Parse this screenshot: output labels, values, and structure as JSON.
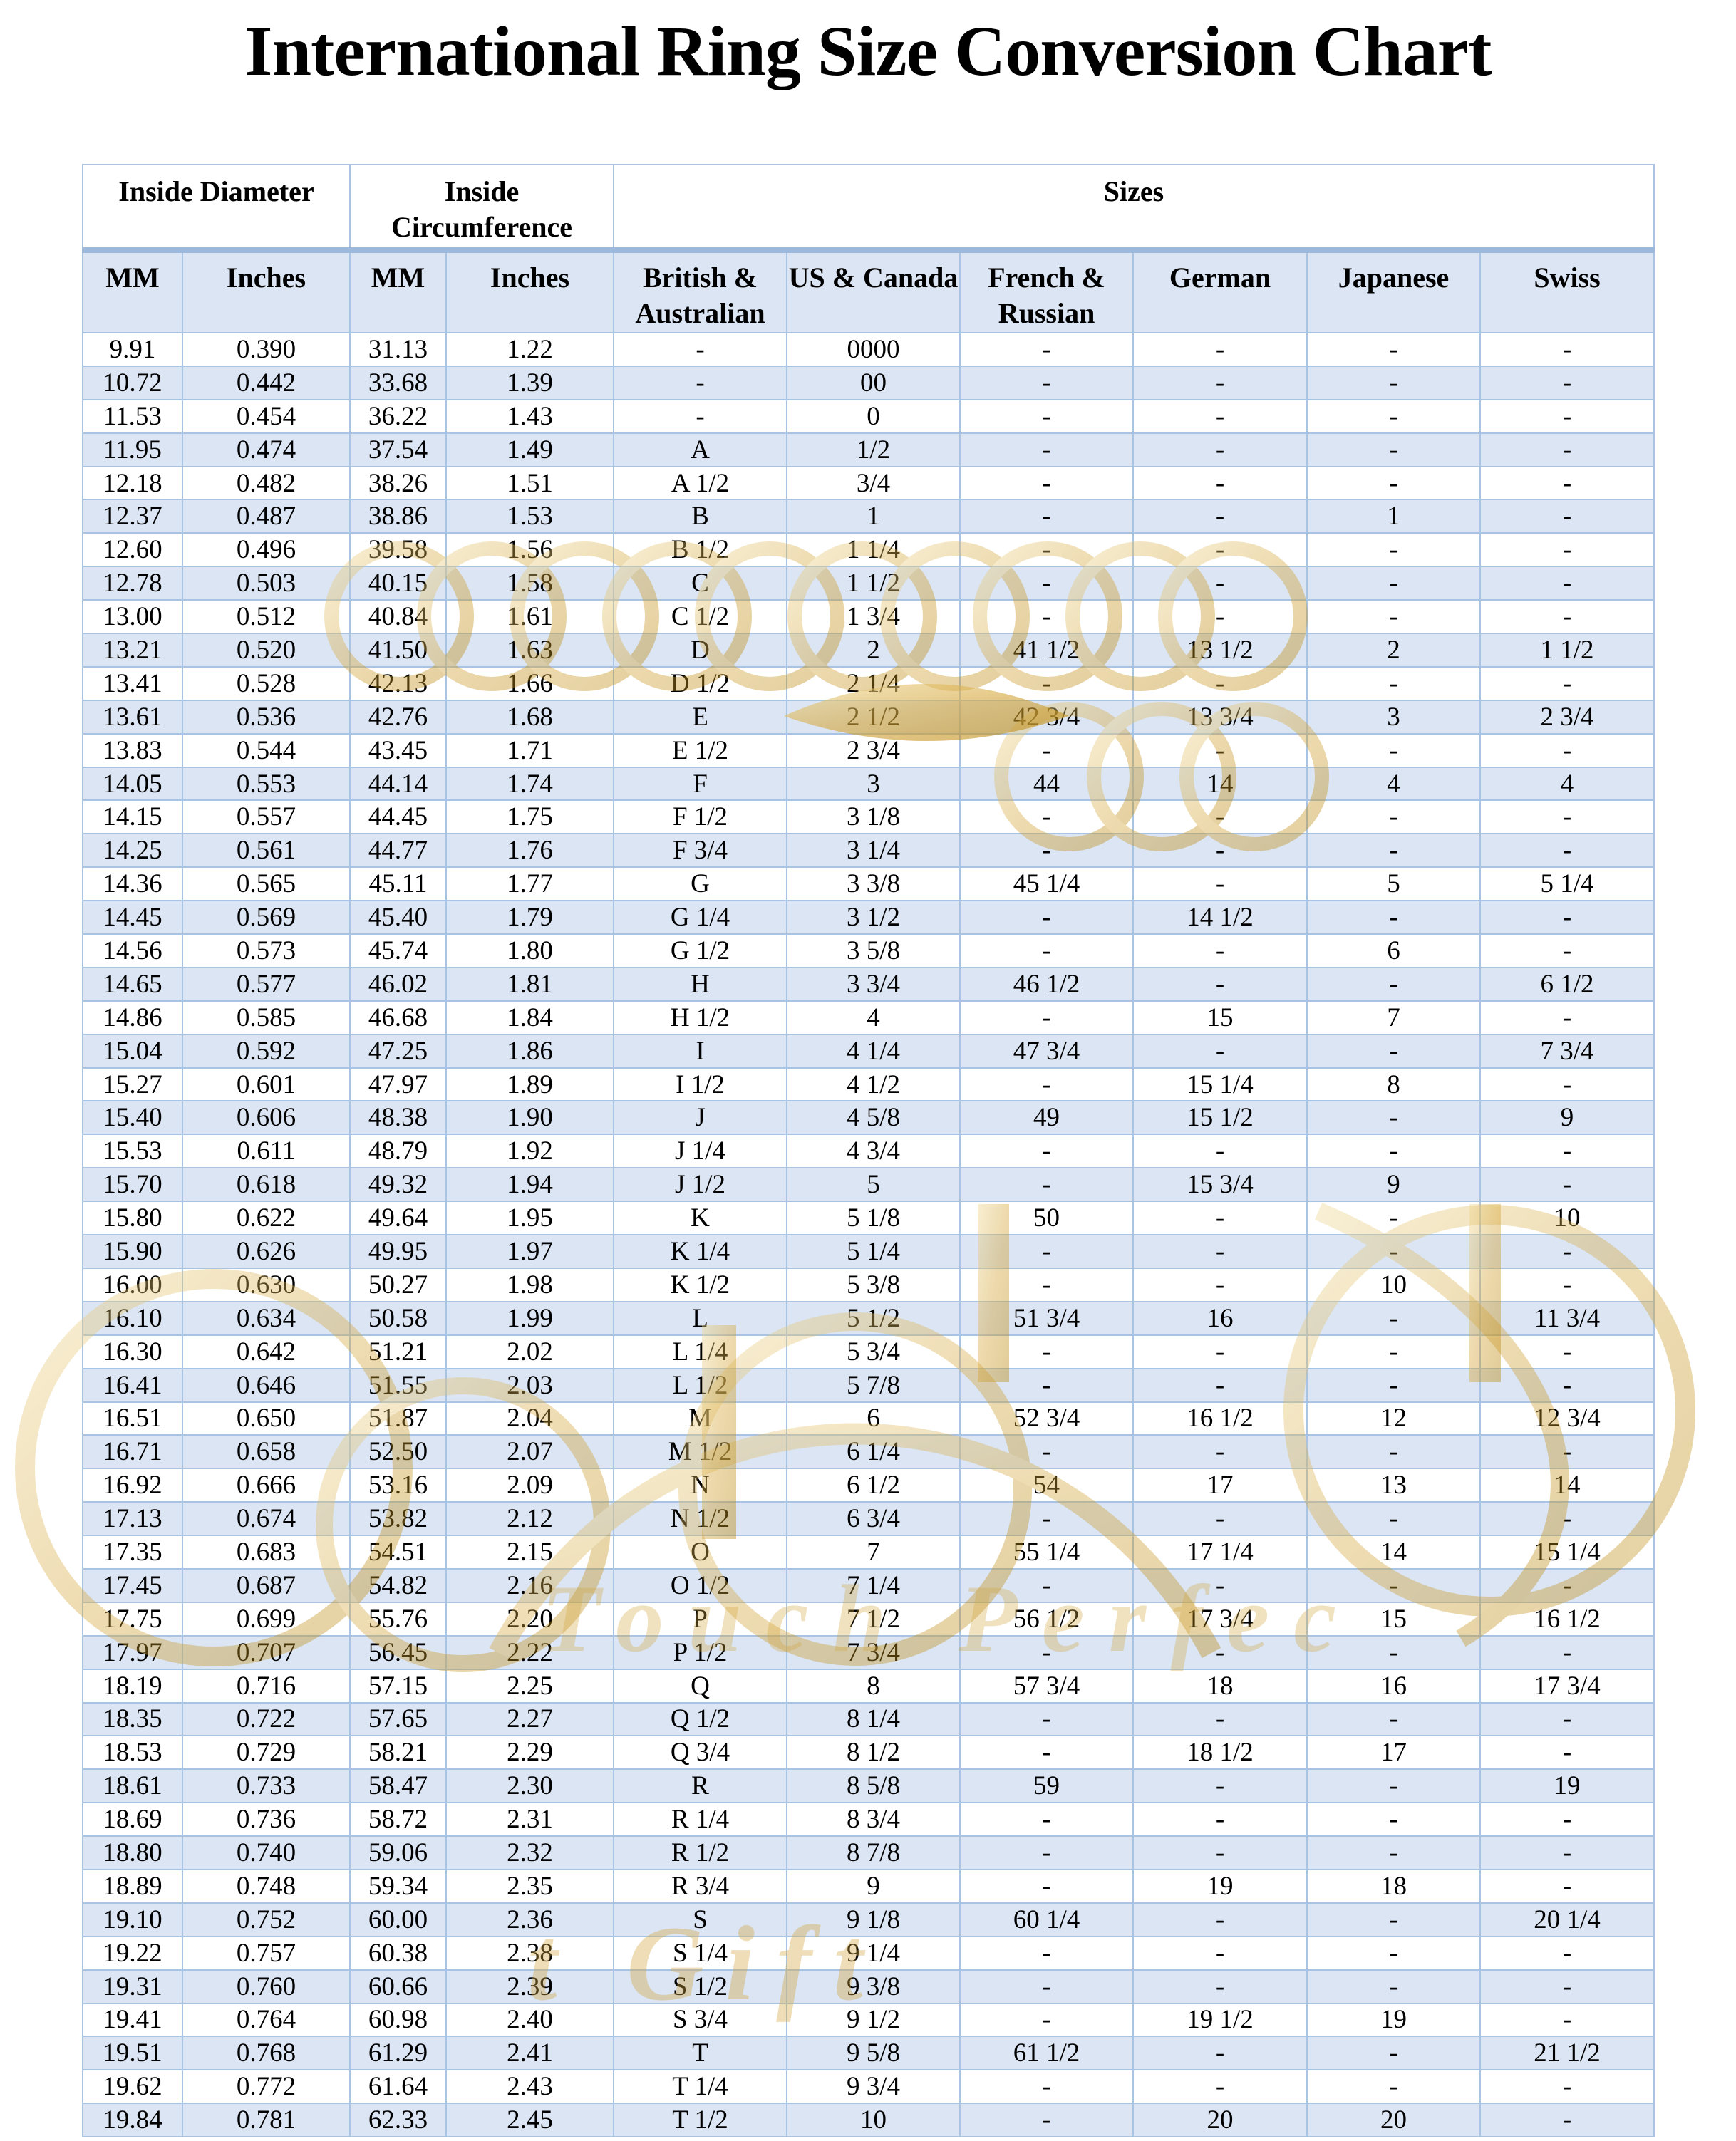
{
  "title": "International Ring Size Conversion Chart",
  "table": {
    "group_headers": [
      {
        "label": "Inside Diameter",
        "span": 2
      },
      {
        "label": "Inside Circumference",
        "span": 2
      },
      {
        "label": "Sizes",
        "span": 6
      }
    ],
    "column_headers": [
      "MM",
      "Inches",
      "MM",
      "Inches",
      "British & Australian",
      "US & Canada",
      "French & Russian",
      "German",
      "Japanese",
      "Swiss"
    ],
    "rows": [
      [
        "9.91",
        "0.390",
        "31.13",
        "1.22",
        "-",
        "0000",
        "-",
        "-",
        "-",
        "-"
      ],
      [
        "10.72",
        "0.442",
        "33.68",
        "1.39",
        "-",
        "00",
        "-",
        "-",
        "-",
        "-"
      ],
      [
        "11.53",
        "0.454",
        "36.22",
        "1.43",
        "-",
        "0",
        "-",
        "-",
        "-",
        "-"
      ],
      [
        "11.95",
        "0.474",
        "37.54",
        "1.49",
        "A",
        "1/2",
        "-",
        "-",
        "-",
        "-"
      ],
      [
        "12.18",
        "0.482",
        "38.26",
        "1.51",
        "A 1/2",
        "3/4",
        "-",
        "-",
        "-",
        "-"
      ],
      [
        "12.37",
        "0.487",
        "38.86",
        "1.53",
        "B",
        "1",
        "-",
        "-",
        "1",
        "-"
      ],
      [
        "12.60",
        "0.496",
        "39.58",
        "1.56",
        "B 1/2",
        "1 1/4",
        "-",
        "-",
        "-",
        "-"
      ],
      [
        "12.78",
        "0.503",
        "40.15",
        "1.58",
        "C",
        "1 1/2",
        "-",
        "-",
        "-",
        "-"
      ],
      [
        "13.00",
        "0.512",
        "40.84",
        "1.61",
        "C 1/2",
        "1 3/4",
        "-",
        "-",
        "-",
        "-"
      ],
      [
        "13.21",
        "0.520",
        "41.50",
        "1.63",
        "D",
        "2",
        "41 1/2",
        "13 1/2",
        "2",
        "1 1/2"
      ],
      [
        "13.41",
        "0.528",
        "42.13",
        "1.66",
        "D 1/2",
        "2 1/4",
        "-",
        "-",
        "-",
        "-"
      ],
      [
        "13.61",
        "0.536",
        "42.76",
        "1.68",
        "E",
        "2 1/2",
        "42 3/4",
        "13 3/4",
        "3",
        "2 3/4"
      ],
      [
        "13.83",
        "0.544",
        "43.45",
        "1.71",
        "E 1/2",
        "2 3/4",
        "-",
        "-",
        "-",
        "-"
      ],
      [
        "14.05",
        "0.553",
        "44.14",
        "1.74",
        "F",
        "3",
        "44",
        "14",
        "4",
        "4"
      ],
      [
        "14.15",
        "0.557",
        "44.45",
        "1.75",
        "F 1/2",
        "3 1/8",
        "-",
        "-",
        "-",
        "-"
      ],
      [
        "14.25",
        "0.561",
        "44.77",
        "1.76",
        "F 3/4",
        "3 1/4",
        "-",
        "-",
        "-",
        "-"
      ],
      [
        "14.36",
        "0.565",
        "45.11",
        "1.77",
        "G",
        "3 3/8",
        "45 1/4",
        "-",
        "5",
        "5 1/4"
      ],
      [
        "14.45",
        "0.569",
        "45.40",
        "1.79",
        "G 1/4",
        "3 1/2",
        "-",
        "14 1/2",
        "-",
        "-"
      ],
      [
        "14.56",
        "0.573",
        "45.74",
        "1.80",
        "G 1/2",
        "3 5/8",
        "-",
        "-",
        "6",
        "-"
      ],
      [
        "14.65",
        "0.577",
        "46.02",
        "1.81",
        "H",
        "3 3/4",
        "46 1/2",
        "-",
        "-",
        "6 1/2"
      ],
      [
        "14.86",
        "0.585",
        "46.68",
        "1.84",
        "H 1/2",
        "4",
        "-",
        "15",
        "7",
        "-"
      ],
      [
        "15.04",
        "0.592",
        "47.25",
        "1.86",
        "I",
        "4 1/4",
        "47 3/4",
        "-",
        "-",
        "7 3/4"
      ],
      [
        "15.27",
        "0.601",
        "47.97",
        "1.89",
        "I 1/2",
        "4 1/2",
        "-",
        "15 1/4",
        "8",
        "-"
      ],
      [
        "15.40",
        "0.606",
        "48.38",
        "1.90",
        "J",
        "4 5/8",
        "49",
        "15 1/2",
        "-",
        "9"
      ],
      [
        "15.53",
        "0.611",
        "48.79",
        "1.92",
        "J 1/4",
        "4 3/4",
        "-",
        "-",
        "-",
        "-"
      ],
      [
        "15.70",
        "0.618",
        "49.32",
        "1.94",
        "J 1/2",
        "5",
        "-",
        "15 3/4",
        "9",
        "-"
      ],
      [
        "15.80",
        "0.622",
        "49.64",
        "1.95",
        "K",
        "5 1/8",
        "50",
        "-",
        "-",
        "10"
      ],
      [
        "15.90",
        "0.626",
        "49.95",
        "1.97",
        "K 1/4",
        "5 1/4",
        "-",
        "-",
        "-",
        "-"
      ],
      [
        "16.00",
        "0.630",
        "50.27",
        "1.98",
        "K 1/2",
        "5 3/8",
        "-",
        "-",
        "10",
        "-"
      ],
      [
        "16.10",
        "0.634",
        "50.58",
        "1.99",
        "L",
        "5 1/2",
        "51 3/4",
        "16",
        "-",
        "11 3/4"
      ],
      [
        "16.30",
        "0.642",
        "51.21",
        "2.02",
        "L 1/4",
        "5 3/4",
        "-",
        "-",
        "-",
        "-"
      ],
      [
        "16.41",
        "0.646",
        "51.55",
        "2.03",
        "L 1/2",
        "5 7/8",
        "-",
        "-",
        "-",
        "-"
      ],
      [
        "16.51",
        "0.650",
        "51.87",
        "2.04",
        "M",
        "6",
        "52 3/4",
        "16 1/2",
        "12",
        "12 3/4"
      ],
      [
        "16.71",
        "0.658",
        "52.50",
        "2.07",
        "M 1/2",
        "6 1/4",
        "-",
        "-",
        "-",
        "-"
      ],
      [
        "16.92",
        "0.666",
        "53.16",
        "2.09",
        "N",
        "6 1/2",
        "54",
        "17",
        "13",
        "14"
      ],
      [
        "17.13",
        "0.674",
        "53.82",
        "2.12",
        "N 1/2",
        "6 3/4",
        "-",
        "-",
        "-",
        "-"
      ],
      [
        "17.35",
        "0.683",
        "54.51",
        "2.15",
        "O",
        "7",
        "55 1/4",
        "17 1/4",
        "14",
        "15 1/4"
      ],
      [
        "17.45",
        "0.687",
        "54.82",
        "2.16",
        "O 1/2",
        "7 1/4",
        "-",
        "-",
        "-",
        "-"
      ],
      [
        "17.75",
        "0.699",
        "55.76",
        "2.20",
        "P",
        "7 1/2",
        "56 1/2",
        "17 3/4",
        "15",
        "16 1/2"
      ],
      [
        "17.97",
        "0.707",
        "56.45",
        "2.22",
        "P 1/2",
        "7 3/4",
        "-",
        "-",
        "-",
        "-"
      ],
      [
        "18.19",
        "0.716",
        "57.15",
        "2.25",
        "Q",
        "8",
        "57 3/4",
        "18",
        "16",
        "17 3/4"
      ],
      [
        "18.35",
        "0.722",
        "57.65",
        "2.27",
        "Q 1/2",
        "8 1/4",
        "-",
        "-",
        "-",
        "-"
      ],
      [
        "18.53",
        "0.729",
        "58.21",
        "2.29",
        "Q 3/4",
        "8 1/2",
        "-",
        "18 1/2",
        "17",
        "-"
      ],
      [
        "18.61",
        "0.733",
        "58.47",
        "2.30",
        "R",
        "8 5/8",
        "59",
        "-",
        "-",
        "19"
      ],
      [
        "18.69",
        "0.736",
        "58.72",
        "2.31",
        "R 1/4",
        "8 3/4",
        "-",
        "-",
        "-",
        "-"
      ],
      [
        "18.80",
        "0.740",
        "59.06",
        "2.32",
        "R 1/2",
        "8 7/8",
        "-",
        "-",
        "-",
        "-"
      ],
      [
        "18.89",
        "0.748",
        "59.34",
        "2.35",
        "R 3/4",
        "9",
        "-",
        "19",
        "18",
        "-"
      ],
      [
        "19.10",
        "0.752",
        "60.00",
        "2.36",
        "S",
        "9 1/8",
        "60 1/4",
        "-",
        "-",
        "20 1/4"
      ],
      [
        "19.22",
        "0.757",
        "60.38",
        "2.38",
        "S 1/4",
        "9 1/4",
        "-",
        "-",
        "-",
        "-"
      ],
      [
        "19.31",
        "0.760",
        "60.66",
        "2.39",
        "S 1/2",
        "9 3/8",
        "-",
        "-",
        "-",
        "-"
      ],
      [
        "19.41",
        "0.764",
        "60.98",
        "2.40",
        "S 3/4",
        "9 1/2",
        "-",
        "19 1/2",
        "19",
        "-"
      ],
      [
        "19.51",
        "0.768",
        "61.29",
        "2.41",
        "T",
        "9 5/8",
        "61 1/2",
        "-",
        "-",
        "21 1/2"
      ],
      [
        "19.62",
        "0.772",
        "61.64",
        "2.43",
        "T 1/4",
        "9 3/4",
        "-",
        "-",
        "-",
        "-"
      ],
      [
        "19.84",
        "0.781",
        "62.33",
        "2.45",
        "T 1/2",
        "10",
        "-",
        "20",
        "20",
        "-"
      ]
    ]
  },
  "colors": {
    "stripe_blue": "#dbe5f3",
    "border_blue": "#a9c4e2",
    "divider_blue": "#9cb9dc",
    "watermark_gold": "#d3a741",
    "text": "#000000",
    "background": "#ffffff"
  },
  "watermark": {
    "fragments": [
      "Touch Perfec",
      "t Gift"
    ]
  }
}
